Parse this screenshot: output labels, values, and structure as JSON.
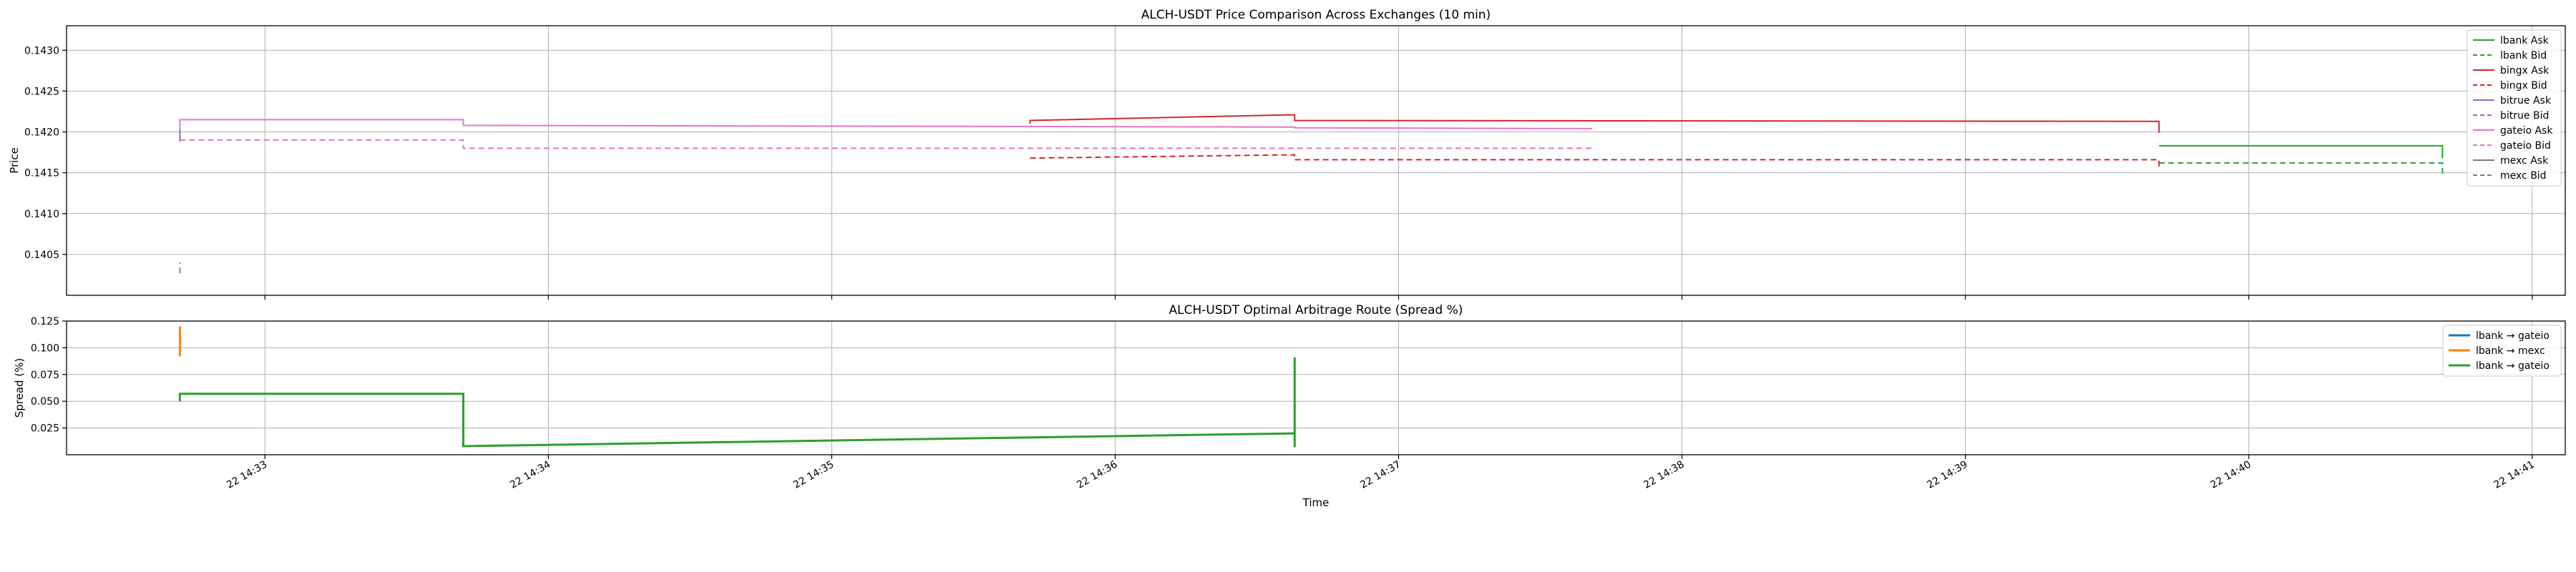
{
  "chart_data": [
    {
      "type": "line",
      "title": "ALCH-USDT Price Comparison Across Exchanges (10 min)",
      "xlabel": "",
      "ylabel": "Price",
      "ylim": [
        0.14,
        0.1433
      ],
      "yticks": [
        "0.1405",
        "0.1410",
        "0.1415",
        "0.1420",
        "0.1425",
        "0.1430"
      ],
      "grid": true,
      "legend_position": "top-right",
      "series": [
        {
          "name": "lbank Ask",
          "color": "#2ca02c",
          "dash": false,
          "x": [
            "14:39:41",
            "14:40:41",
            "14:40:41"
          ],
          "y": [
            0.14183,
            0.14183,
            0.14168
          ]
        },
        {
          "name": "lbank Bid",
          "color": "#2ca02c",
          "dash": true,
          "x": [
            "14:39:41",
            "14:40:41",
            "14:40:41"
          ],
          "y": [
            0.14162,
            0.14162,
            0.14147
          ]
        },
        {
          "name": "bingx Ask",
          "color": "#d62728",
          "dash": false,
          "x": [
            "14:35:42",
            "14:35:42",
            "14:36:38",
            "14:36:38",
            "14:39:41",
            "14:39:41"
          ],
          "y": [
            0.1421,
            0.14214,
            0.14221,
            0.14214,
            0.14213,
            0.14199
          ]
        },
        {
          "name": "bingx Bid",
          "color": "#d62728",
          "dash": true,
          "x": [
            "14:35:42",
            "14:36:38",
            "14:36:38",
            "14:39:41",
            "14:39:41"
          ],
          "y": [
            0.14168,
            0.14172,
            0.14166,
            0.14166,
            0.14156
          ]
        },
        {
          "name": "bitrue Ask",
          "color": "#9467bd",
          "dash": false,
          "x": [
            "14:32:42",
            "14:32:42"
          ],
          "y": [
            0.14188,
            0.14203
          ]
        },
        {
          "name": "bitrue Bid",
          "color": "#9467bd",
          "dash": true,
          "x": [
            "14:32:42",
            "14:32:42"
          ],
          "y": [
            0.14027,
            0.1404
          ]
        },
        {
          "name": "gateio Ask",
          "color": "#e377c2",
          "dash": false,
          "x": [
            "14:32:42",
            "14:32:42",
            "14:33:42",
            "14:33:42",
            "14:36:38",
            "14:36:38",
            "14:37:41"
          ],
          "y": [
            0.14203,
            0.14215,
            0.14215,
            0.14208,
            0.14206,
            0.14205,
            0.14204
          ]
        },
        {
          "name": "gateio Bid",
          "color": "#e377c2",
          "dash": true,
          "x": [
            "14:32:42",
            "14:33:42",
            "14:33:42",
            "14:37:41"
          ],
          "y": [
            0.1419,
            0.1419,
            0.1418,
            0.1418
          ]
        },
        {
          "name": "mexc Ask",
          "color": "#7f7f7f",
          "dash": false,
          "x": [],
          "y": []
        },
        {
          "name": "mexc Bid",
          "color": "#7f7f7f",
          "dash": true,
          "x": [],
          "y": []
        }
      ]
    },
    {
      "type": "line",
      "title": "ALCH-USDT Optimal Arbitrage Route (Spread %)",
      "xlabel": "Time",
      "ylabel": "Spread (%)",
      "ylim": [
        0.0,
        0.125
      ],
      "yticks": [
        "0.025",
        "0.050",
        "0.075",
        "0.100",
        "0.125"
      ],
      "xticks": [
        "22 14:33",
        "22 14:34",
        "22 14:35",
        "22 14:36",
        "22 14:37",
        "22 14:38",
        "22 14:39",
        "22 14:40",
        "22 14:41"
      ],
      "grid": true,
      "legend_position": "top-right",
      "series": [
        {
          "name": "lbank → gateio",
          "color": "#1f77b4",
          "x": [],
          "y": []
        },
        {
          "name": "lbank → mexc",
          "color": "#ff7f0e",
          "x": [
            "14:32:42",
            "14:32:42"
          ],
          "y": [
            0.092,
            0.12
          ]
        },
        {
          "name": "lbank → gateio",
          "color": "#2ca02c",
          "x": [
            "14:32:42",
            "14:32:42",
            "14:33:42",
            "14:33:42",
            "14:36:38",
            "14:36:38",
            "14:36:38"
          ],
          "y": [
            0.05,
            0.057,
            0.057,
            0.008,
            0.02,
            0.007,
            0.091
          ]
        }
      ]
    }
  ]
}
